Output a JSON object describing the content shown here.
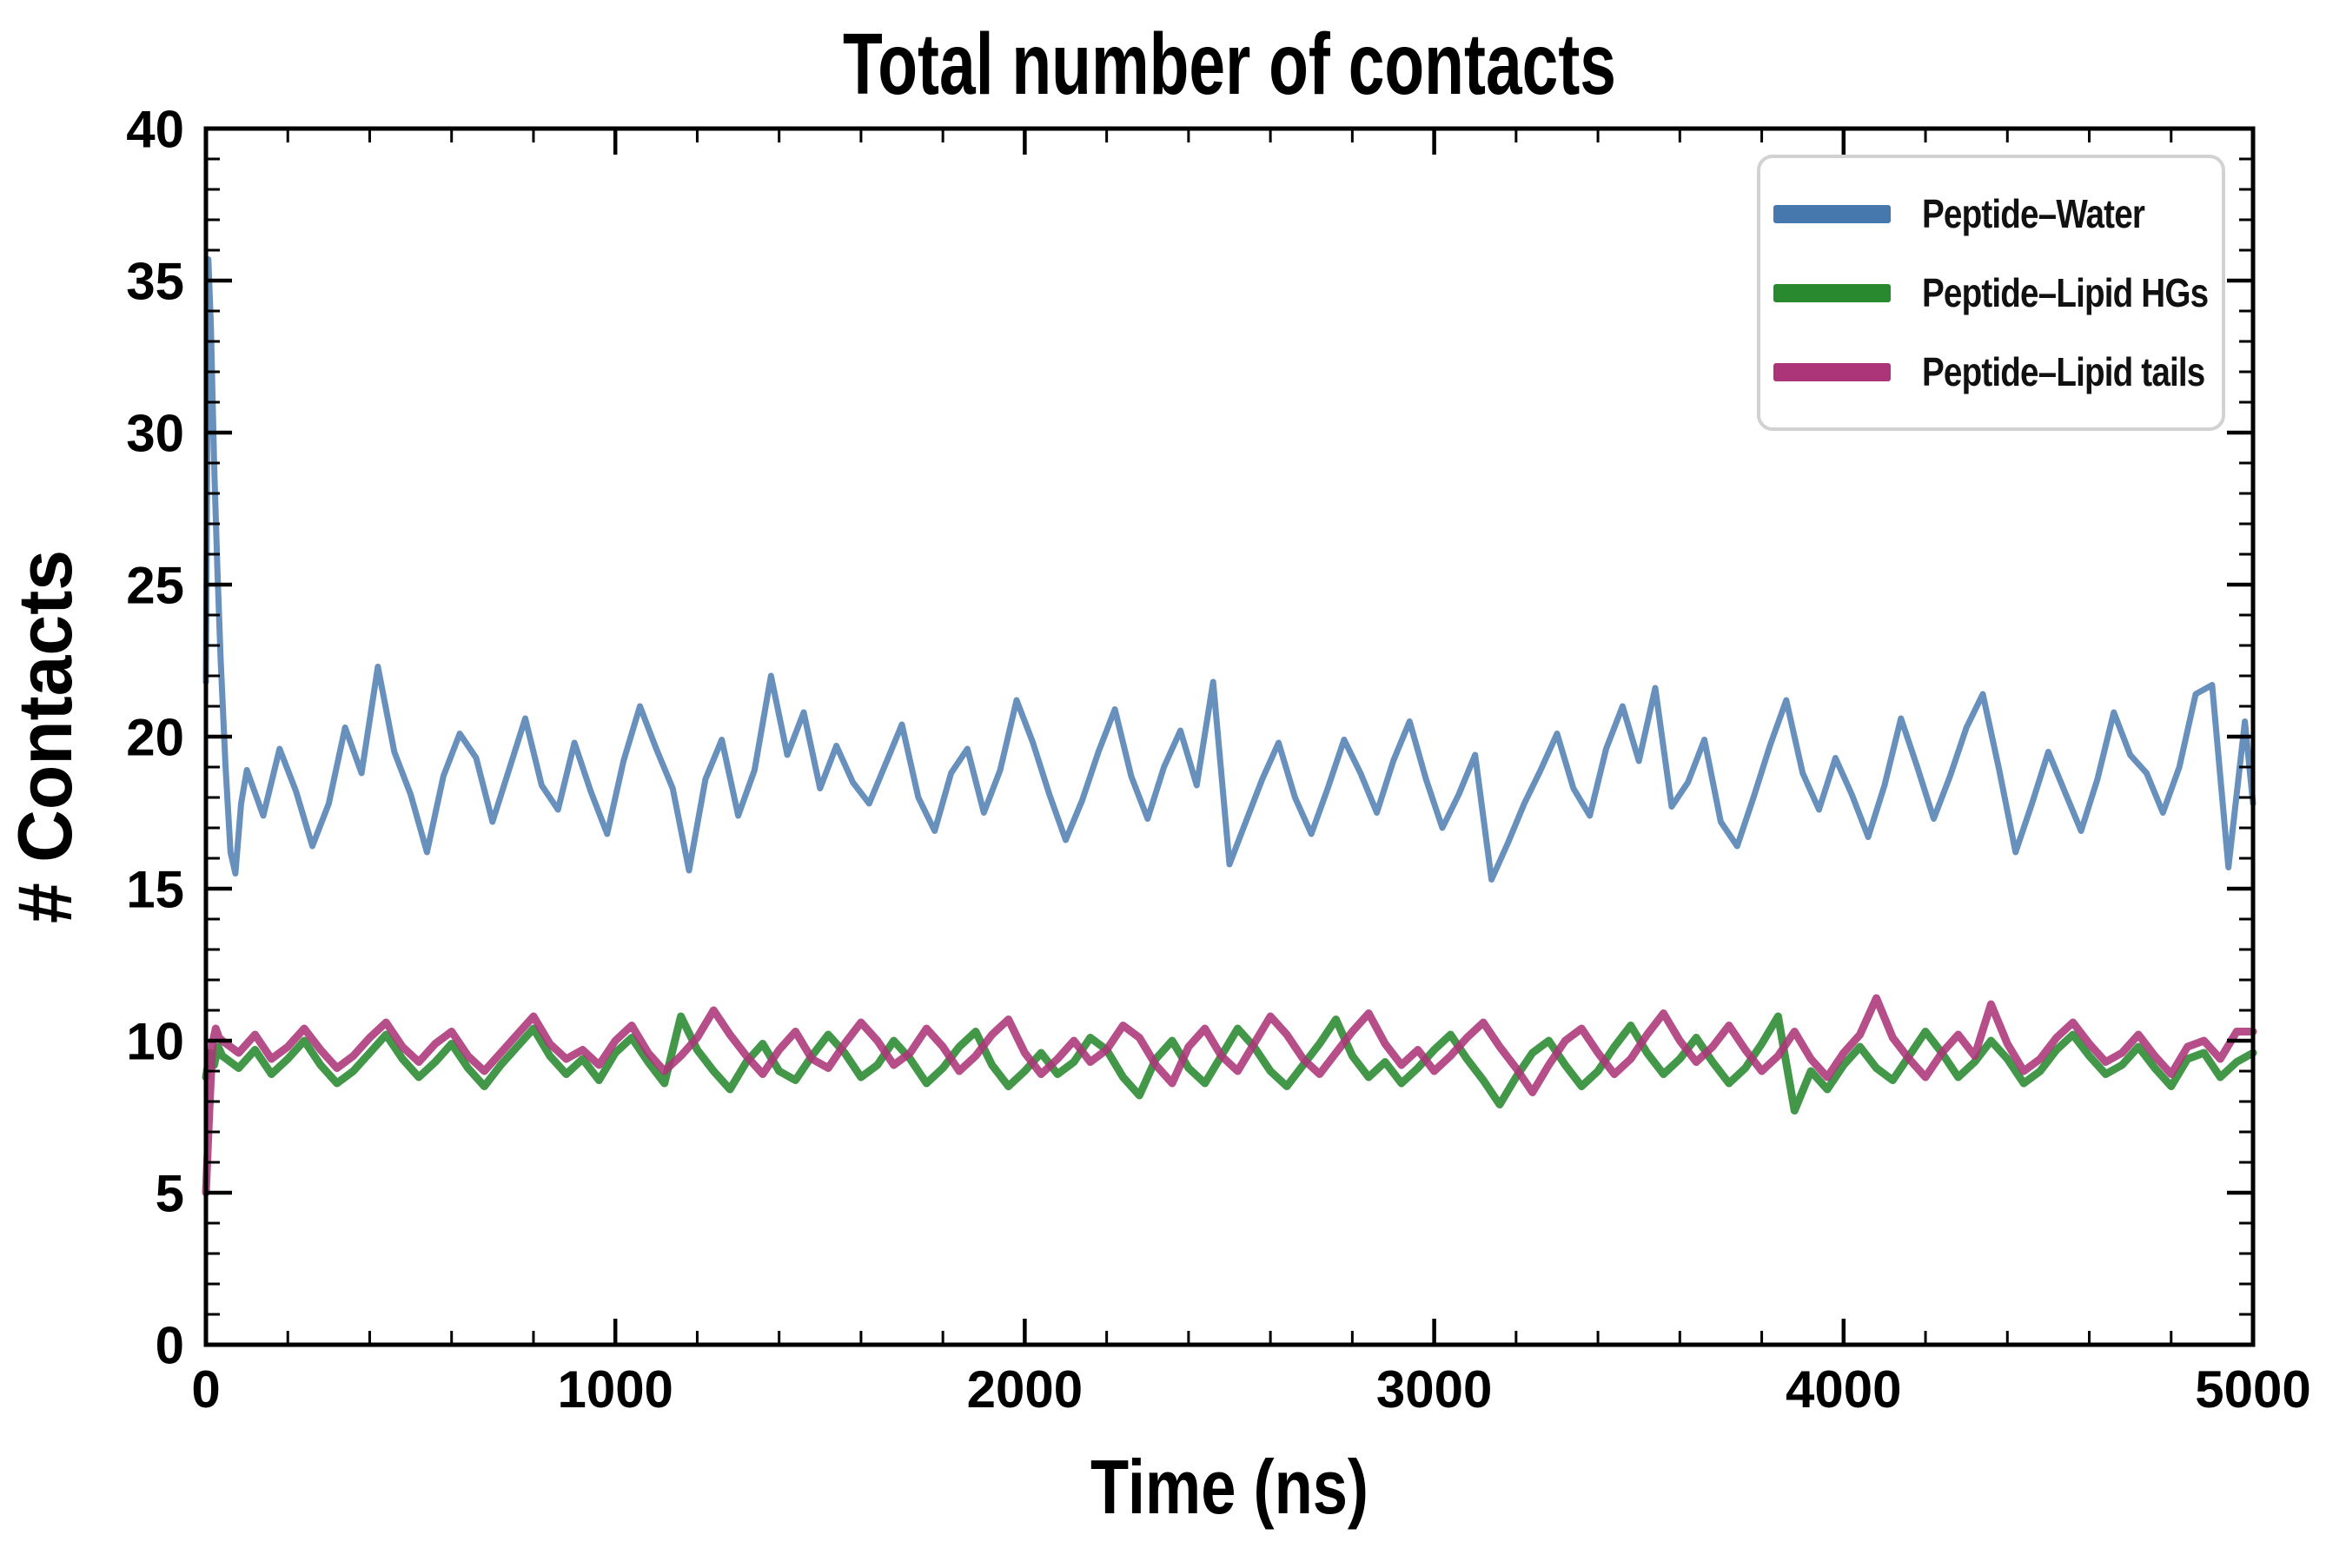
{
  "chart_data": {
    "type": "line",
    "title": "Total number of contacts",
    "xlabel": "Time (ns)",
    "ylabel": "# Contacts",
    "xlim": [
      0,
      5000
    ],
    "ylim": [
      0,
      40
    ],
    "grid": false,
    "legend_position": "upper right",
    "x_ticks_major": [
      0,
      1000,
      2000,
      3000,
      4000,
      5000
    ],
    "x_ticks_minor": [
      200,
      400,
      600,
      800,
      1200,
      1400,
      1600,
      1800,
      2200,
      2400,
      2600,
      2800,
      3200,
      3400,
      3600,
      3800,
      4200,
      4400,
      4600,
      4800
    ],
    "y_ticks_major": [
      0,
      5,
      10,
      15,
      20,
      25,
      30,
      35,
      40
    ],
    "y_ticks_minor": [
      1,
      2,
      3,
      4,
      6,
      7,
      8,
      9,
      11,
      12,
      13,
      14,
      16,
      17,
      18,
      19,
      21,
      22,
      23,
      24,
      26,
      27,
      28,
      29,
      31,
      32,
      33,
      34,
      36,
      37,
      38,
      39
    ],
    "series": [
      {
        "name": "Peptide–Water",
        "color": "#4678ad",
        "opacity": 0.82,
        "width": 7,
        "start": [
          [
            0,
            21.8
          ],
          [
            6,
            35.7
          ],
          [
            12,
            33.5
          ],
          [
            20,
            29.0
          ],
          [
            28,
            25.5
          ],
          [
            36,
            22.5
          ],
          [
            48,
            19.0
          ],
          [
            60,
            16.2
          ],
          [
            72,
            15.5
          ],
          [
            86,
            17.8
          ],
          [
            100,
            18.9
          ]
        ],
        "t0": 140,
        "dt": 40,
        "values": [
          17.4,
          19.6,
          18.2,
          16.4,
          17.8,
          20.3,
          18.8,
          22.3,
          19.5,
          18.1,
          16.2,
          18.7,
          20.1,
          19.3,
          17.2,
          18.9,
          20.6,
          18.4,
          17.6,
          19.8,
          18.2,
          16.8,
          19.2,
          21.0,
          19.6,
          18.3,
          15.6,
          18.6,
          19.9,
          17.4,
          18.9,
          22.0,
          19.4,
          20.8,
          18.3,
          19.7,
          18.5,
          17.8,
          19.1,
          20.4,
          18.0,
          16.9,
          18.8,
          19.6,
          17.5,
          18.9,
          21.2,
          19.8,
          18.1,
          16.6,
          17.9,
          19.5,
          20.9,
          18.7,
          17.3,
          19.0,
          20.2,
          18.4,
          21.8,
          15.8,
          17.2,
          18.6,
          19.8,
          18.0,
          16.8,
          18.3,
          19.9,
          18.8,
          17.5,
          19.2,
          20.5,
          18.6,
          17.0,
          18.1,
          19.4,
          15.3,
          16.5,
          17.8,
          18.9,
          20.1,
          18.3,
          17.4,
          19.6,
          21.0,
          19.2,
          21.6,
          17.7,
          18.5,
          19.9,
          17.2,
          16.4,
          18.0,
          19.7,
          21.2,
          18.8,
          17.6,
          19.3,
          18.1,
          16.7,
          18.4,
          20.6,
          19.0,
          17.3,
          18.7,
          20.3,
          21.4,
          18.9,
          16.2,
          17.8,
          19.5,
          18.2,
          16.9,
          18.6,
          20.8,
          19.4,
          18.8,
          17.5,
          19.0,
          21.4,
          21.7,
          15.7,
          20.5
        ],
        "end": [
          [
            5000,
            17.8
          ]
        ]
      },
      {
        "name": "Peptide–Lipid HGs",
        "color": "#28892f",
        "opacity": 0.88,
        "width": 9,
        "start": [
          [
            0,
            8.8
          ],
          [
            10,
            9.6
          ],
          [
            20,
            9.2
          ],
          [
            30,
            9.8
          ]
        ],
        "t0": 40,
        "dt": 40,
        "values": [
          9.5,
          9.1,
          9.7,
          8.9,
          9.4,
          10.0,
          9.2,
          8.6,
          9.0,
          9.6,
          10.2,
          9.4,
          8.8,
          9.3,
          9.9,
          9.1,
          8.5,
          9.2,
          9.8,
          10.4,
          9.5,
          8.9,
          9.4,
          8.7,
          9.6,
          10.1,
          9.3,
          8.6,
          10.8,
          9.7,
          9.0,
          8.4,
          9.3,
          9.9,
          9.0,
          8.7,
          9.5,
          10.2,
          9.6,
          8.8,
          9.2,
          10.0,
          9.4,
          8.6,
          9.1,
          9.8,
          10.3,
          9.2,
          8.5,
          9.0,
          9.6,
          8.9,
          9.3,
          10.1,
          9.7,
          8.8,
          8.2,
          9.4,
          10.0,
          9.1,
          8.6,
          9.5,
          10.4,
          9.8,
          9.0,
          8.5,
          9.2,
          9.9,
          10.7,
          9.5,
          8.8,
          9.3,
          8.6,
          9.1,
          9.7,
          10.2,
          9.4,
          8.7,
          7.9,
          8.8,
          9.6,
          10.0,
          9.2,
          8.5,
          9.0,
          9.8,
          10.5,
          9.6,
          8.9,
          9.4,
          10.1,
          9.3,
          8.6,
          9.1,
          9.9,
          10.8,
          7.7,
          9.0,
          8.4,
          9.2,
          9.8,
          9.1,
          8.7,
          9.5,
          10.3,
          9.6,
          8.8,
          9.3,
          10.0,
          9.4,
          8.6,
          9.0,
          9.7,
          10.2,
          9.5,
          8.9,
          9.2,
          9.8,
          9.1,
          8.5,
          9.4,
          9.6,
          8.8,
          9.3
        ],
        "end": [
          [
            5000,
            9.6
          ]
        ]
      },
      {
        "name": "Peptide–Lipid tails",
        "color": "#ac3579",
        "opacity": 0.88,
        "width": 9,
        "start": [
          [
            0,
            5.0
          ],
          [
            8,
            7.6
          ],
          [
            16,
            9.9
          ],
          [
            24,
            10.4
          ],
          [
            32,
            10.1
          ]
        ],
        "t0": 40,
        "dt": 40,
        "values": [
          10.0,
          9.6,
          10.2,
          9.4,
          9.8,
          10.4,
          9.7,
          9.1,
          9.5,
          10.1,
          10.6,
          9.8,
          9.3,
          9.9,
          10.3,
          9.5,
          9.0,
          9.6,
          10.2,
          10.8,
          9.9,
          9.4,
          9.7,
          9.2,
          10.0,
          10.5,
          9.6,
          9.0,
          9.5,
          10.1,
          11.0,
          10.2,
          9.5,
          8.9,
          9.7,
          10.3,
          9.4,
          9.1,
          9.9,
          10.6,
          10.0,
          9.2,
          9.6,
          10.4,
          9.8,
          9.0,
          9.5,
          10.2,
          10.7,
          9.6,
          8.9,
          9.4,
          10.0,
          9.3,
          9.7,
          10.5,
          10.1,
          9.2,
          8.6,
          9.8,
          10.4,
          9.5,
          9.0,
          9.9,
          10.8,
          10.2,
          9.4,
          8.9,
          9.6,
          10.3,
          10.9,
          9.9,
          9.2,
          9.7,
          9.0,
          9.5,
          10.1,
          10.6,
          9.8,
          9.1,
          8.3,
          9.2,
          10.0,
          10.4,
          9.6,
          8.9,
          9.4,
          10.2,
          10.9,
          10.0,
          9.3,
          9.8,
          10.5,
          9.7,
          9.0,
          9.5,
          10.3,
          9.4,
          8.8,
          9.6,
          10.2,
          11.4,
          10.1,
          9.4,
          8.8,
          9.6,
          10.2,
          9.5,
          11.2,
          9.9,
          9.0,
          9.4,
          10.1,
          10.6,
          9.9,
          9.3,
          9.6,
          10.2,
          9.5,
          8.9,
          9.8,
          10.0,
          9.4,
          10.3
        ],
        "end": [
          [
            5000,
            10.3
          ]
        ]
      }
    ]
  }
}
